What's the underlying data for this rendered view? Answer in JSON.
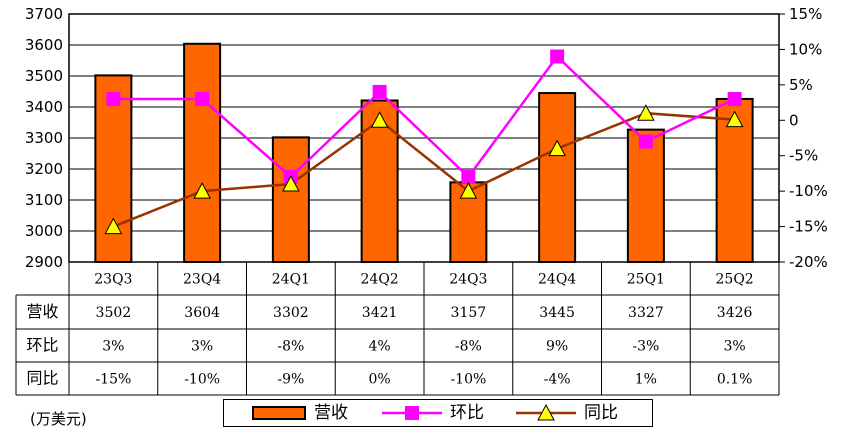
{
  "chart_data": {
    "type": "bar",
    "categories": [
      "23Q3",
      "23Q4",
      "24Q1",
      "24Q2",
      "24Q3",
      "24Q4",
      "25Q1",
      "25Q2"
    ],
    "series": [
      {
        "name": "营收",
        "type": "bar",
        "axis": "left",
        "color": "#FF6600",
        "values": [
          3502,
          3604,
          3302,
          3421,
          3157,
          3445,
          3327,
          3426
        ]
      },
      {
        "name": "环比",
        "type": "line",
        "axis": "right",
        "color": "#FF00FF",
        "values": [
          3,
          3,
          -8,
          4,
          -8,
          9,
          -3,
          3
        ]
      },
      {
        "name": "同比",
        "type": "line",
        "axis": "right",
        "color": "#993300",
        "marker_color": "#FFFF00",
        "values": [
          -15,
          -10,
          -9,
          0,
          -10,
          -4,
          1,
          0.1
        ]
      }
    ],
    "ylim_left": [
      2900,
      3700
    ],
    "yticks_left": [
      "3700",
      "3600",
      "3500",
      "3400",
      "3300",
      "3200",
      "3100",
      "3000",
      "2900"
    ],
    "ylim_right": [
      -20,
      15
    ],
    "yticks_right": [
      "15%",
      "10%",
      "5%",
      "0",
      "-5%",
      "-10%",
      "-15%",
      "-20%"
    ],
    "table": {
      "rows": [
        {
          "label": "营收",
          "cells": [
            "3502",
            "3604",
            "3302",
            "3421",
            "3157",
            "3445",
            "3327",
            "3426"
          ]
        },
        {
          "label": "环比",
          "cells": [
            "3%",
            "3%",
            "-8%",
            "4%",
            "-8%",
            "9%",
            "-3%",
            "3%"
          ]
        },
        {
          "label": "同比",
          "cells": [
            "-15%",
            "-10%",
            "-9%",
            "0%",
            "-10%",
            "-4%",
            "1%",
            "0.1%"
          ]
        }
      ]
    },
    "unit_label": "(万美元)",
    "grid": true,
    "legend_position": "bottom-center"
  }
}
